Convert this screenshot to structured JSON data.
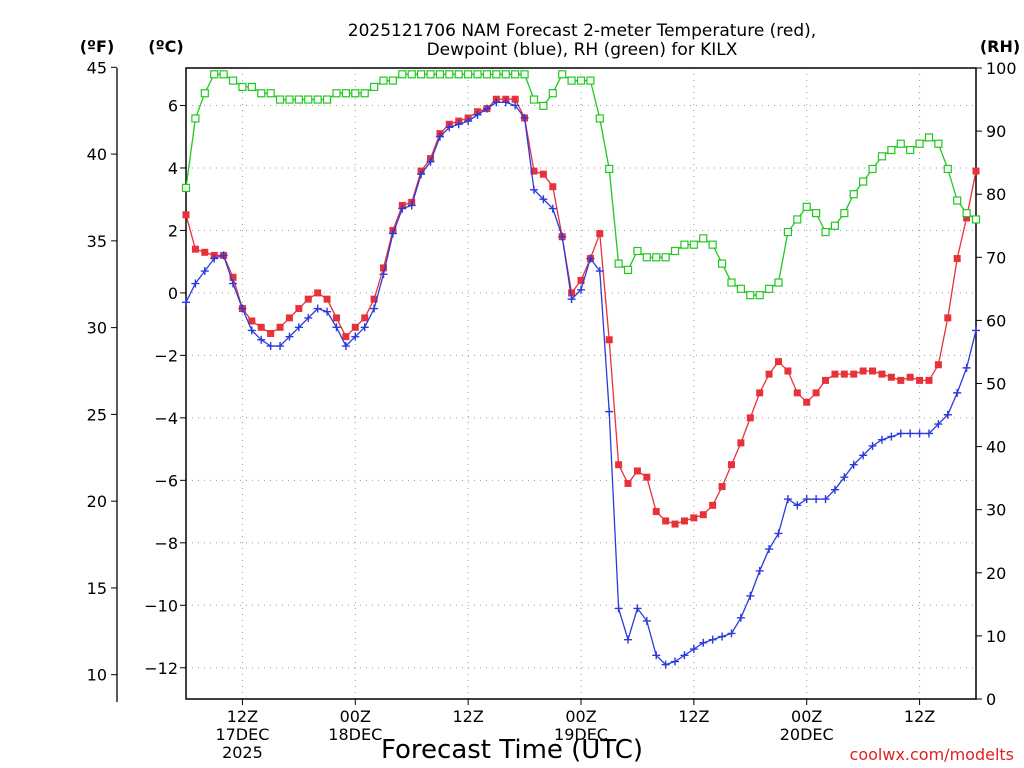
{
  "chart_data": {
    "type": "line",
    "title_line1": "2025121706 NAM Forecast 2-meter Temperature (red),",
    "title_line2": "Dewpoint (blue), RH (green) for KILX",
    "xlabel": "Forecast Time (UTC)",
    "credit": "coolwx.com/modelts",
    "axes": {
      "left_f": {
        "unit": "(ºF)",
        "ticks": [
          10,
          15,
          20,
          25,
          30,
          35,
          40,
          45
        ]
      },
      "left_c": {
        "unit": "(ºC)",
        "ticks": [
          -12,
          -10,
          -8,
          -6,
          -4,
          -2,
          0,
          2,
          4,
          6
        ],
        "ylim": [
          -13,
          7.2
        ]
      },
      "right_rh": {
        "unit": "(RH)",
        "ticks": [
          0,
          10,
          20,
          30,
          40,
          50,
          60,
          70,
          80,
          90,
          100
        ],
        "ylim": [
          0,
          100
        ]
      },
      "x_ticks": [
        {
          "hour": 6,
          "lines": [
            "12Z",
            "17DEC",
            "2025"
          ]
        },
        {
          "hour": 18,
          "lines": [
            "00Z",
            "18DEC"
          ]
        },
        {
          "hour": 30,
          "lines": [
            "12Z"
          ]
        },
        {
          "hour": 42,
          "lines": [
            "00Z",
            "19DEC"
          ]
        },
        {
          "hour": 54,
          "lines": [
            "12Z"
          ]
        },
        {
          "hour": 66,
          "lines": [
            "00Z",
            "20DEC"
          ]
        },
        {
          "hour": 78,
          "lines": [
            "12Z"
          ]
        }
      ],
      "xlim": [
        0,
        84
      ]
    },
    "x_hours": [
      0,
      1,
      2,
      3,
      4,
      5,
      6,
      7,
      8,
      9,
      10,
      11,
      12,
      13,
      14,
      15,
      16,
      17,
      18,
      19,
      20,
      21,
      22,
      23,
      24,
      25,
      26,
      27,
      28,
      29,
      30,
      31,
      32,
      33,
      34,
      35,
      36,
      37,
      38,
      39,
      40,
      41,
      42,
      43,
      44,
      45,
      46,
      47,
      48,
      49,
      50,
      51,
      52,
      53,
      54,
      55,
      56,
      57,
      58,
      59,
      60,
      61,
      62,
      63,
      64,
      65,
      66,
      67,
      68,
      69,
      70,
      71,
      72,
      73,
      74,
      75,
      76,
      77,
      78,
      79,
      80,
      81,
      82,
      83,
      84
    ],
    "series": [
      {
        "name": "Temperature",
        "color": "#e8323a",
        "axis": "left_c",
        "marker": "square-filled",
        "values": [
          2.5,
          1.4,
          1.3,
          1.2,
          1.2,
          0.5,
          -0.5,
          -0.9,
          -1.1,
          -1.3,
          -1.1,
          -0.8,
          -0.5,
          -0.2,
          0.0,
          -0.2,
          -0.8,
          -1.4,
          -1.1,
          -0.8,
          -0.2,
          0.8,
          2.0,
          2.8,
          2.9,
          3.9,
          4.3,
          5.1,
          5.4,
          5.5,
          5.6,
          5.8,
          5.9,
          6.2,
          6.2,
          6.2,
          5.6,
          3.9,
          3.8,
          3.4,
          1.8,
          0.0,
          0.4,
          1.1,
          1.9,
          -1.5,
          -5.5,
          -6.1,
          -5.7,
          -5.9,
          -7.0,
          -7.3,
          -7.4,
          -7.3,
          -7.2,
          -7.1,
          -6.8,
          -6.2,
          -5.5,
          -4.8,
          -4.0,
          -3.2,
          -2.6,
          -2.2,
          -2.5,
          -3.2,
          -3.5,
          -3.2,
          -2.8,
          -2.6,
          -2.6,
          -2.6,
          -2.5,
          -2.5,
          -2.6,
          -2.7,
          -2.8,
          -2.7,
          -2.8,
          -2.8,
          -2.3,
          -0.8,
          1.1,
          2.4,
          3.9
        ]
      },
      {
        "name": "Dewpoint",
        "color": "#2a3adc",
        "axis": "left_c",
        "marker": "plus",
        "values": [
          -0.3,
          0.3,
          0.7,
          1.1,
          1.2,
          0.3,
          -0.5,
          -1.2,
          -1.5,
          -1.7,
          -1.7,
          -1.4,
          -1.1,
          -0.8,
          -0.5,
          -0.6,
          -1.1,
          -1.7,
          -1.4,
          -1.1,
          -0.5,
          0.6,
          1.9,
          2.7,
          2.8,
          3.8,
          4.2,
          5.0,
          5.3,
          5.4,
          5.5,
          5.7,
          5.9,
          6.1,
          6.1,
          6.0,
          5.6,
          3.3,
          3.0,
          2.7,
          1.8,
          -0.2,
          0.1,
          1.1,
          0.7,
          -3.8,
          -10.1,
          -11.1,
          -10.1,
          -10.5,
          -11.6,
          -11.9,
          -11.8,
          -11.6,
          -11.4,
          -11.2,
          -11.1,
          -11.0,
          -10.9,
          -10.4,
          -9.7,
          -8.9,
          -8.2,
          -7.7,
          -6.6,
          -6.8,
          -6.6,
          -6.6,
          -6.6,
          -6.3,
          -5.9,
          -5.5,
          -5.2,
          -4.9,
          -4.7,
          -4.6,
          -4.5,
          -4.5,
          -4.5,
          -4.5,
          -4.2,
          -3.9,
          -3.2,
          -2.4,
          -1.2
        ]
      },
      {
        "name": "RH",
        "color": "#1fc91f",
        "axis": "right_rh",
        "marker": "square-open",
        "values": [
          81,
          92,
          96,
          99,
          99,
          98,
          97,
          97,
          96,
          96,
          95,
          95,
          95,
          95,
          95,
          95,
          96,
          96,
          96,
          96,
          97,
          98,
          98,
          99,
          99,
          99,
          99,
          99,
          99,
          99,
          99,
          99,
          99,
          99,
          99,
          99,
          99,
          95,
          94,
          96,
          99,
          98,
          98,
          98,
          92,
          84,
          69,
          68,
          71,
          70,
          70,
          70,
          71,
          72,
          72,
          73,
          72,
          69,
          66,
          65,
          64,
          64,
          65,
          66,
          74,
          76,
          78,
          77,
          74,
          75,
          77,
          80,
          82,
          84,
          86,
          87,
          88,
          87,
          88,
          89,
          88,
          84,
          79,
          77,
          76
        ]
      }
    ]
  }
}
